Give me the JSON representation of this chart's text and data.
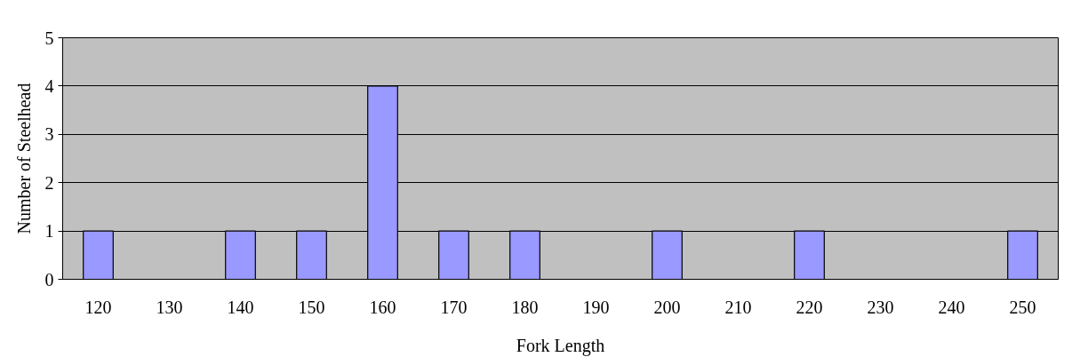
{
  "chart_data": {
    "type": "bar",
    "xlabel": "Fork Length",
    "ylabel": "Number of Steelhead",
    "categories": [
      "120",
      "130",
      "140",
      "150",
      "160",
      "170",
      "180",
      "190",
      "200",
      "210",
      "220",
      "230",
      "240",
      "250"
    ],
    "values": [
      1,
      0,
      1,
      1,
      4,
      1,
      1,
      0,
      1,
      0,
      1,
      0,
      0,
      1
    ],
    "color": "#9999ff",
    "ylim": [
      0,
      5
    ],
    "yticks": [
      0,
      1,
      2,
      3,
      4,
      5
    ],
    "grid": "y"
  }
}
